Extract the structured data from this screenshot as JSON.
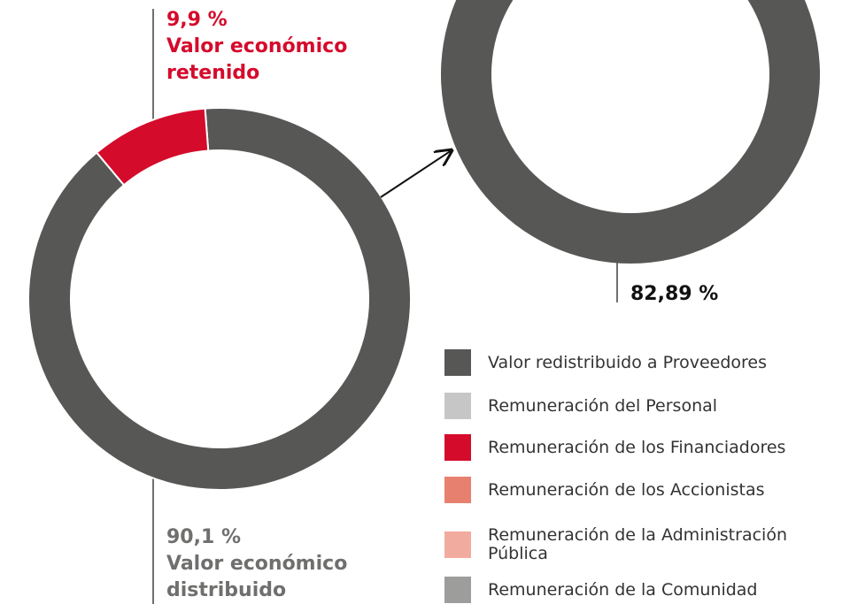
{
  "chart_data": [
    {
      "type": "pie",
      "categories": [
        "Valor económico retenido",
        "Valor económico distribuido"
      ],
      "values": [
        9.9,
        90.1
      ],
      "value_labels": [
        "9,9 %",
        "90,1 %"
      ],
      "colors": [
        "#d50b2c",
        "#575756"
      ]
    },
    {
      "type": "pie",
      "categories": [
        "Valor redistribuido a Proveedores",
        "Remuneración del Personal",
        "Remuneración de los Financiadores",
        "Remuneración de los Accionistas",
        "Remuneración de la Administración Pública",
        "Remuneración de la Comunidad"
      ],
      "values": [
        82.89,
        null,
        null,
        null,
        null,
        null
      ],
      "value_labels": [
        "82,89 %",
        null,
        null,
        null,
        null,
        null
      ],
      "colors": [
        "#575756",
        "#c6c6c6",
        "#d50b2c",
        "#e8806f",
        "#f2ac9f",
        "#9d9d9c"
      ]
    }
  ]
}
